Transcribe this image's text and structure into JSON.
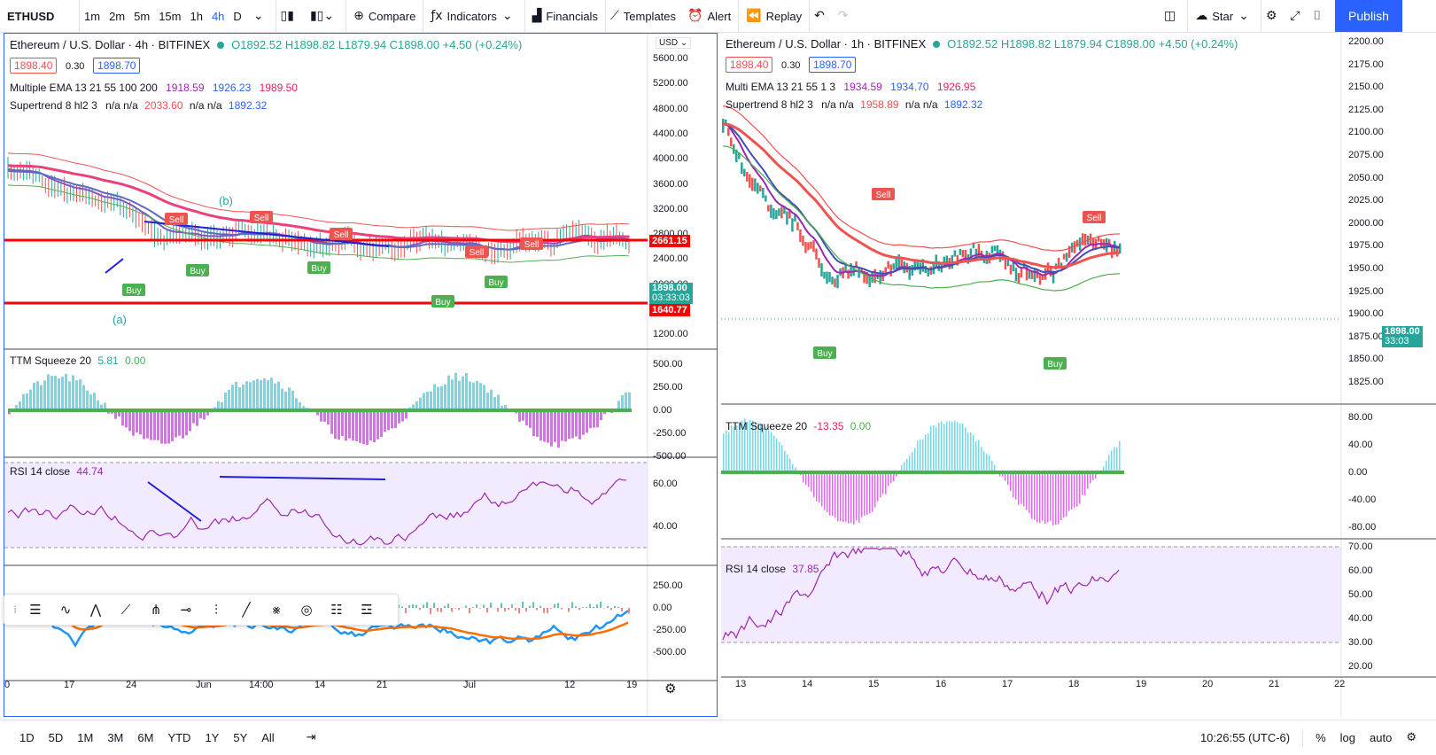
{
  "toolbar": {
    "symbol": "ETHUSD",
    "intervals": [
      "1m",
      "2m",
      "5m",
      "15m",
      "1h",
      "4h",
      "D"
    ],
    "compare": "Compare",
    "indicators": "Indicators",
    "financials": "Financials",
    "templates": "Templates",
    "alert": "Alert",
    "replay": "Replay",
    "star": "Star",
    "publish": "Publish"
  },
  "left_chart": {
    "title": "Ethereum / U.S. Dollar · 4h · BITFINEX",
    "ohlc": "O1892.52 H1898.82 L1879.94 C1898.00 +4.50 (+0.24%)",
    "bid": "1898.40",
    "spread": "0.30",
    "ask": "1898.70",
    "ema_label": "Multiple EMA 13 21 55 100 200",
    "ema_v1": "1918.59",
    "ema_v2": "1926.23",
    "ema_v3": "1989.50",
    "supertrend_label": "Supertrend 8 hl2 3",
    "supertrend_na": "n/a n/a",
    "supertrend_v1": "2033.60",
    "supertrend_na2": "n/a n/a",
    "supertrend_v2": "1892.32",
    "currency": "USD",
    "price_axis": [
      "5600.00",
      "5200.00",
      "4800.00",
      "4400.00",
      "4000.00",
      "3600.00",
      "3200.00",
      "2800.00",
      "2400.00",
      "2000.00",
      "1600.00",
      "1200.00"
    ],
    "tag_top": "2661.15",
    "tag_last": "1898.00",
    "tag_countdown": "03:33:03",
    "tag_bottom": "1640.77",
    "ttm_label": "TTM Squeeze 20",
    "ttm_v1": "5.81",
    "ttm_v2": "0.00",
    "ttm_axis": [
      "500.00",
      "250.00",
      "0.00",
      "-250.00",
      "-500.00"
    ],
    "rsi_label": "RSI 14 close",
    "rsi_v": "44.74",
    "rsi_axis": [
      "60.00",
      "40.00"
    ],
    "macd_axis": [
      "250.00",
      "0.00",
      "-250.00",
      "-500.00"
    ],
    "time_axis": [
      "0",
      "17",
      "24",
      "Jun",
      "14:00",
      "14",
      "21",
      "Jul",
      "12",
      "19"
    ],
    "signals": [
      "Sell",
      "Sell",
      "Sell",
      "Sell",
      "Sell",
      "Buy",
      "Buy",
      "Buy",
      "Buy",
      "Buy"
    ],
    "wave_labels": [
      "(a)",
      "(b)"
    ]
  },
  "right_chart": {
    "title": "Ethereum / U.S. Dollar · 1h · BITFINEX",
    "ohlc": "O1892.52 H1898.82 L1879.94 C1898.00 +4.50 (+0.24%)",
    "bid": "1898.40",
    "spread": "0.30",
    "ask": "1898.70",
    "ema_label": "Multi EMA 13 21 55 1 3",
    "ema_v1": "1934.59",
    "ema_v2": "1934.70",
    "ema_v3": "1926.95",
    "supertrend_label": "Supertrend 8 hl2 3",
    "supertrend_na": "n/a n/a",
    "supertrend_v1": "1958.89",
    "supertrend_na2": "n/a n/a",
    "supertrend_v2": "1892.32",
    "price_axis": [
      "2200.00",
      "2175.00",
      "2150.00",
      "2125.00",
      "2100.00",
      "2075.00",
      "2050.00",
      "2025.00",
      "2000.00",
      "1975.00",
      "1950.00",
      "1925.00",
      "1900.00",
      "1875.00",
      "1850.00",
      "1825.00"
    ],
    "tag_last": "1898.00",
    "tag_countdown": "33:03",
    "ttm_label": "TTM Squeeze 20",
    "ttm_v1": "-13.35",
    "ttm_v2": "0.00",
    "ttm_axis": [
      "80.00",
      "40.00",
      "0.00",
      "-40.00",
      "-80.00"
    ],
    "rsi_label": "RSI 14 close",
    "rsi_v": "37.85",
    "rsi_axis": [
      "70.00",
      "60.00",
      "50.00",
      "40.00",
      "30.00",
      "20.00"
    ],
    "time_axis": [
      "13",
      "14",
      "15",
      "16",
      "17",
      "18",
      "19",
      "20",
      "21",
      "22"
    ],
    "signals": [
      "Sell",
      "Sell",
      "Buy",
      "Buy"
    ]
  },
  "bottombar": {
    "ranges": [
      "1D",
      "5D",
      "1M",
      "3M",
      "6M",
      "YTD",
      "1Y",
      "5Y",
      "All"
    ],
    "clock": "10:26:55 (UTC-6)",
    "percent": "%",
    "log": "log",
    "auto": "auto"
  },
  "colors": {
    "accent": "#2962ff",
    "red": "#ff0000",
    "green": "#26a69a",
    "rsi_fill": "#e9ddff"
  }
}
